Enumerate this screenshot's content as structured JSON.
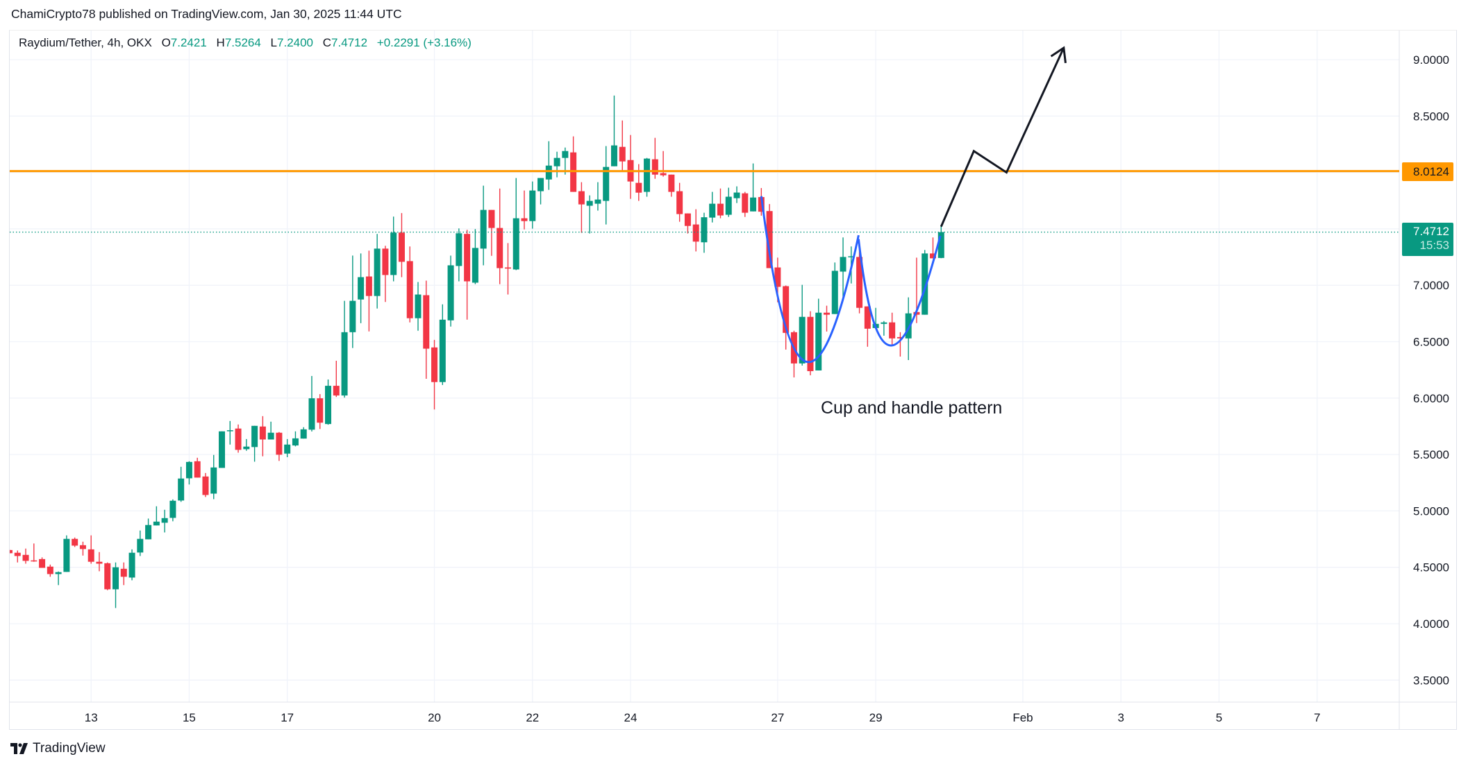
{
  "header": {
    "publisher": "ChamiCrypto78 published on TradingView.com, Jan 30, 2025 11:44 UTC"
  },
  "legend": {
    "symbol": "Raydium/Tether, 4h, OKX",
    "open_label": "O",
    "open": "7.2421",
    "high_label": "H",
    "high": "7.5264",
    "low_label": "L",
    "low": "7.2400",
    "close_label": "C",
    "close": "7.4712",
    "change": "+0.2291 (+3.16%)"
  },
  "price_labels": {
    "resistance": "8.0124",
    "last_price": "7.4712",
    "countdown": "15:53"
  },
  "annotation_text": "Cup and handle pattern",
  "footer": {
    "brand": "TradingView"
  },
  "colors": {
    "up": "#089981",
    "down": "#F23645",
    "resistance": "#FF9800",
    "cup": "#2962FF",
    "arrow": "#131722",
    "grid": "#f0f3fa"
  },
  "chart_data": {
    "type": "candlestick",
    "title": "Raydium/Tether, 4h, OKX",
    "xlabel": "",
    "ylabel": "",
    "ylim": [
      3.25,
      9.2
    ],
    "x_range": [
      0,
      171
    ],
    "y_ticks": [
      "9.0000",
      "8.5000",
      "8.0000",
      "7.5000",
      "7.0000",
      "6.5000",
      "6.0000",
      "5.5000",
      "5.0000",
      "4.5000",
      "4.0000",
      "3.5000"
    ],
    "y_tick_values": [
      9.0,
      8.5,
      8.0,
      7.5,
      7.0,
      6.5,
      6.0,
      5.5,
      5.0,
      4.5,
      4.0,
      3.5
    ],
    "x_ticks": [
      {
        "label": "13",
        "x": 10
      },
      {
        "label": "15",
        "x": 22
      },
      {
        "label": "17",
        "x": 34
      },
      {
        "label": "20",
        "x": 52
      },
      {
        "label": "22",
        "x": 64
      },
      {
        "label": "24",
        "x": 76
      },
      {
        "label": "27",
        "x": 94
      },
      {
        "label": "29",
        "x": 106
      },
      {
        "label": "Feb",
        "x": 124
      },
      {
        "label": "3",
        "x": 136
      },
      {
        "label": "5",
        "x": 148
      },
      {
        "label": "7",
        "x": 160
      }
    ],
    "candles_ohlc": [
      [
        4.653,
        4.66,
        4.62,
        4.625
      ],
      [
        4.629,
        4.649,
        4.543,
        4.6
      ],
      [
        4.61,
        4.666,
        4.532,
        4.557
      ],
      [
        4.561,
        4.711,
        4.549,
        4.555
      ],
      [
        4.573,
        4.588,
        4.495,
        4.495
      ],
      [
        4.506,
        4.524,
        4.416,
        4.44
      ],
      [
        4.44,
        4.463,
        4.342,
        4.457
      ],
      [
        4.459,
        4.783,
        4.459,
        4.752
      ],
      [
        4.752,
        4.764,
        4.68,
        4.692
      ],
      [
        4.696,
        4.727,
        4.604,
        4.662
      ],
      [
        4.659,
        4.783,
        4.532,
        4.549
      ],
      [
        4.549,
        4.635,
        4.465,
        4.532
      ],
      [
        4.536,
        4.543,
        4.297,
        4.305
      ],
      [
        4.305,
        4.543,
        4.139,
        4.5
      ],
      [
        4.487,
        4.543,
        4.342,
        4.416
      ],
      [
        4.409,
        4.659,
        4.385,
        4.629
      ],
      [
        4.631,
        4.826,
        4.6,
        4.752
      ],
      [
        4.748,
        4.932,
        4.748,
        4.875
      ],
      [
        4.871,
        5.041,
        4.871,
        4.905
      ],
      [
        4.895,
        5.01,
        4.809,
        4.936
      ],
      [
        4.938,
        5.102,
        4.908,
        5.09
      ],
      [
        5.092,
        5.391,
        5.08,
        5.287
      ],
      [
        5.289,
        5.44,
        5.234,
        5.434
      ],
      [
        5.44,
        5.471,
        5.295,
        5.295
      ],
      [
        5.305,
        5.336,
        5.123,
        5.141
      ],
      [
        5.153,
        5.496,
        5.104,
        5.385
      ],
      [
        5.381,
        5.705,
        5.381,
        5.705
      ],
      [
        5.707,
        5.797,
        5.588,
        5.715
      ],
      [
        5.73,
        5.766,
        5.516,
        5.541
      ],
      [
        5.547,
        5.637,
        5.533,
        5.57
      ],
      [
        5.566,
        5.754,
        5.436,
        5.754
      ],
      [
        5.748,
        5.84,
        5.484,
        5.633
      ],
      [
        5.633,
        5.791,
        5.633,
        5.693
      ],
      [
        5.693,
        5.699,
        5.443,
        5.498
      ],
      [
        5.508,
        5.637,
        5.476,
        5.588
      ],
      [
        5.58,
        5.705,
        5.572,
        5.643
      ],
      [
        5.641,
        5.742,
        5.641,
        5.723
      ],
      [
        5.72,
        6.196,
        5.704,
        5.998
      ],
      [
        5.998,
        6.035,
        5.726,
        5.782
      ],
      [
        5.77,
        6.165,
        5.764,
        6.109
      ],
      [
        6.109,
        6.331,
        6.01,
        6.023
      ],
      [
        6.023,
        6.862,
        6.004,
        6.584
      ],
      [
        6.584,
        7.263,
        6.444,
        6.862
      ],
      [
        6.874,
        7.282,
        6.664,
        7.072
      ],
      [
        7.078,
        7.307,
        6.591,
        6.905
      ],
      [
        6.905,
        7.455,
        6.794,
        7.325
      ],
      [
        7.325,
        7.35,
        6.852,
        7.091
      ],
      [
        7.091,
        7.609,
        7.035,
        7.467
      ],
      [
        7.467,
        7.64,
        7.072,
        7.208
      ],
      [
        7.214,
        7.344,
        6.671,
        6.708
      ],
      [
        6.708,
        7.029,
        6.597,
        6.918
      ],
      [
        6.912,
        7.041,
        6.171,
        6.438
      ],
      [
        6.449,
        6.516,
        5.899,
        6.142
      ],
      [
        6.142,
        6.831,
        6.116,
        6.695
      ],
      [
        6.689,
        7.263,
        6.634,
        7.177
      ],
      [
        7.171,
        7.504,
        7.035,
        7.461
      ],
      [
        7.455,
        7.492,
        6.695,
        7.035
      ],
      [
        7.023,
        7.498,
        7.01,
        7.331
      ],
      [
        7.325,
        7.883,
        7.177,
        7.668
      ],
      [
        7.668,
        7.668,
        7.261,
        7.508
      ],
      [
        7.508,
        7.858,
        7.01,
        7.152
      ],
      [
        7.158,
        7.374,
        6.918,
        7.148
      ],
      [
        7.14,
        7.951,
        7.134,
        7.594
      ],
      [
        7.594,
        7.84,
        7.495,
        7.569
      ],
      [
        7.569,
        7.92,
        7.502,
        7.84
      ],
      [
        7.834,
        7.951,
        7.717,
        7.951
      ],
      [
        7.938,
        8.277,
        7.846,
        8.061
      ],
      [
        8.055,
        8.184,
        7.957,
        8.129
      ],
      [
        8.129,
        8.221,
        7.981,
        8.19
      ],
      [
        8.178,
        8.32,
        7.828,
        7.828
      ],
      [
        7.834,
        7.914,
        7.465,
        7.717
      ],
      [
        7.705,
        7.797,
        7.459,
        7.748
      ],
      [
        7.723,
        7.914,
        7.662,
        7.76
      ],
      [
        7.748,
        8.234,
        7.539,
        8.049
      ],
      [
        8.055,
        8.682,
        8.055,
        8.24
      ],
      [
        8.227,
        8.461,
        8.012,
        8.098
      ],
      [
        8.11,
        8.332,
        7.766,
        7.92
      ],
      [
        7.908,
        8.074,
        7.748,
        7.821
      ],
      [
        7.828,
        8.129,
        7.785,
        8.123
      ],
      [
        8.117,
        8.307,
        7.944,
        7.981
      ],
      [
        7.994,
        8.19,
        7.963,
        7.975
      ],
      [
        7.981,
        7.981,
        7.785,
        7.828
      ],
      [
        7.834,
        7.908,
        7.563,
        7.631
      ],
      [
        7.637,
        7.637,
        7.459,
        7.526
      ],
      [
        7.539,
        7.674,
        7.3,
        7.387
      ],
      [
        7.381,
        7.643,
        7.288,
        7.603
      ],
      [
        7.6,
        7.828,
        7.557,
        7.723
      ],
      [
        7.723,
        7.858,
        7.594,
        7.619
      ],
      [
        7.625,
        7.865,
        7.606,
        7.785
      ],
      [
        7.772,
        7.877,
        7.729,
        7.822
      ],
      [
        7.815,
        7.828,
        7.606,
        7.643
      ],
      [
        7.655,
        8.08,
        7.655,
        7.778
      ],
      [
        7.782,
        7.862,
        7.617,
        7.652
      ],
      [
        7.658,
        7.72,
        7.152,
        7.152
      ],
      [
        7.158,
        7.245,
        6.85,
        6.986
      ],
      [
        6.992,
        6.998,
        6.43,
        6.578
      ],
      [
        6.584,
        6.597,
        6.183,
        6.307
      ],
      [
        6.307,
        7.004,
        6.288,
        6.72
      ],
      [
        6.72,
        6.77,
        6.202,
        6.239
      ],
      [
        6.245,
        6.881,
        6.245,
        6.757
      ],
      [
        6.757,
        6.819,
        6.59,
        6.739
      ],
      [
        6.745,
        7.202,
        6.745,
        7.128
      ],
      [
        7.121,
        7.424,
        6.881,
        7.251
      ],
      [
        7.251,
        7.344,
        7.016,
        7.257
      ],
      [
        7.251,
        7.32,
        6.751,
        6.8
      ],
      [
        6.813,
        6.813,
        6.455,
        6.615
      ],
      [
        6.621,
        6.8,
        6.621,
        6.658
      ],
      [
        6.658,
        6.683,
        6.553,
        6.671
      ],
      [
        6.671,
        6.757,
        6.467,
        6.529
      ],
      [
        6.541,
        6.584,
        6.368,
        6.529
      ],
      [
        6.529,
        6.893,
        6.337,
        6.751
      ],
      [
        6.763,
        7.245,
        6.665,
        6.739
      ],
      [
        6.739,
        7.313,
        6.739,
        7.282
      ],
      [
        7.282,
        7.424,
        7.239,
        7.239
      ],
      [
        7.2421,
        7.5264,
        7.24,
        7.4712
      ]
    ],
    "horizontal_lines": [
      {
        "name": "resistance",
        "price": 8.0124,
        "style": "solid"
      },
      {
        "name": "last-price",
        "price": 7.4712,
        "style": "dotted"
      }
    ],
    "drawings": {
      "cup_curve": [
        [
          92,
          7.79
        ],
        [
          97.4,
          6.325
        ],
        [
          103.9,
          7.444
        ]
      ],
      "handle_curve": [
        [
          103.9,
          7.41
        ],
        [
          107.9,
          6.466
        ],
        [
          113.9,
          7.438
        ]
      ],
      "projection_arrow": [
        [
          114,
          7.52
        ],
        [
          118,
          8.19
        ],
        [
          122,
          8.0
        ],
        [
          129,
          9.105
        ]
      ]
    },
    "legend": "top-left",
    "grid": true
  }
}
